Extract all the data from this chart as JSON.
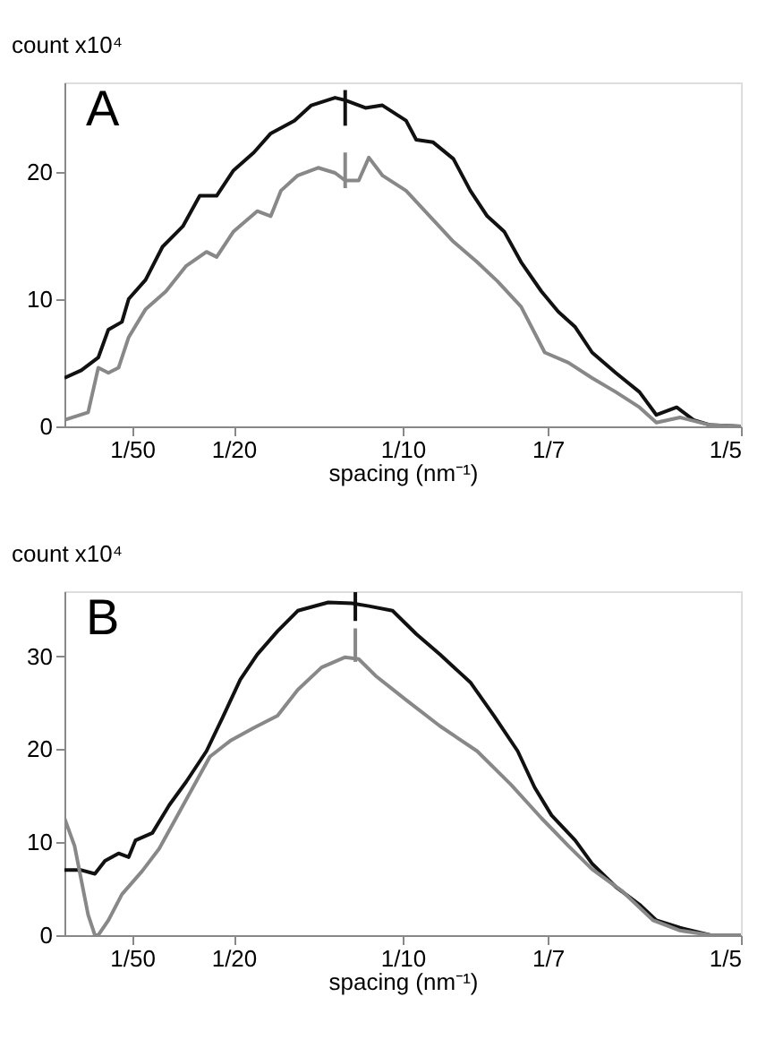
{
  "chart_data": [
    {
      "type": "line",
      "title": "A",
      "xlabel": "spacing (nm⁻¹)",
      "ylabel": "count x10⁴",
      "xlim": [
        0,
        0.2
      ],
      "ylim": [
        0,
        27
      ],
      "xticks": [
        {
          "value": 0.02,
          "label": "1/50"
        },
        {
          "value": 0.05,
          "label": "1/20"
        },
        {
          "value": 0.1,
          "label": "1/10"
        },
        {
          "value": 0.1429,
          "label": "1/7"
        },
        {
          "value": 0.2,
          "label": "1/5"
        }
      ],
      "yticks": [
        0,
        10,
        20
      ],
      "grid": false,
      "marker": "none",
      "line_style": "solid",
      "series": [
        {
          "color": "#111111",
          "x": [
            0,
            0.005,
            0.01,
            0.013,
            0.017,
            0.019,
            0.024,
            0.029,
            0.035,
            0.04,
            0.045,
            0.05,
            0.056,
            0.061,
            0.068,
            0.073,
            0.08,
            0.083,
            0.089,
            0.094,
            0.101,
            0.104,
            0.109,
            0.115,
            0.12,
            0.125,
            0.13,
            0.135,
            0.141,
            0.146,
            0.151,
            0.156,
            0.163,
            0.17,
            0.175,
            0.181,
            0.186,
            0.191,
            0.2
          ],
          "values": [
            3.8,
            4.4,
            5.4,
            7.6,
            8.2,
            10,
            11.5,
            14.1,
            15.7,
            18.1,
            18.1,
            20.1,
            21.5,
            23,
            24,
            25.2,
            25.8,
            25.6,
            25,
            25.2,
            24,
            22.5,
            22.3,
            21,
            18.5,
            16.5,
            15.3,
            12.9,
            10.6,
            9,
            7.8,
            5.8,
            4.2,
            2.7,
            0.9,
            1.5,
            0.5,
            0.1,
            0
          ]
        },
        {
          "color": "#888888",
          "x": [
            0,
            0.007,
            0.01,
            0.013,
            0.016,
            0.019,
            0.024,
            0.03,
            0.036,
            0.042,
            0.045,
            0.05,
            0.057,
            0.061,
            0.064,
            0.069,
            0.075,
            0.08,
            0.083,
            0.087,
            0.09,
            0.094,
            0.101,
            0.108,
            0.115,
            0.122,
            0.128,
            0.135,
            0.142,
            0.149,
            0.156,
            0.163,
            0.17,
            0.175,
            0.182,
            0.191,
            0.2
          ],
          "values": [
            0.5,
            1.1,
            4.6,
            4.2,
            4.6,
            7,
            9.2,
            10.6,
            12.6,
            13.7,
            13.3,
            15.3,
            16.9,
            16.5,
            18.5,
            19.7,
            20.3,
            19.9,
            19.3,
            19.3,
            21.1,
            19.7,
            18.5,
            16.5,
            14.5,
            12.9,
            11.4,
            9.4,
            5.8,
            5,
            3.8,
            2.7,
            1.5,
            0.3,
            0.7,
            0.1,
            0
          ]
        },
        {
          "color": "#111111",
          "x": [
            0.083,
            0.083
          ],
          "values": [
            23.6,
            26.4
          ]
        },
        {
          "color": "#888888",
          "x": [
            0.083,
            0.083
          ],
          "values": [
            18.7,
            21.5
          ]
        }
      ]
    },
    {
      "type": "line",
      "title": "B",
      "xlabel": "spacing (nm⁻¹)",
      "ylabel": "count x10⁴",
      "xlim": [
        0,
        0.2
      ],
      "ylim": [
        0,
        37
      ],
      "xticks": [
        {
          "value": 0.02,
          "label": "1/50"
        },
        {
          "value": 0.05,
          "label": "1/20"
        },
        {
          "value": 0.1,
          "label": "1/10"
        },
        {
          "value": 0.1429,
          "label": "1/7"
        },
        {
          "value": 0.2,
          "label": "1/5"
        }
      ],
      "yticks": [
        0,
        10,
        20,
        30
      ],
      "grid": false,
      "marker": "none",
      "line_style": "solid",
      "series": [
        {
          "color": "#111111",
          "x": [
            0,
            0.005,
            0.009,
            0.012,
            0.016,
            0.019,
            0.021,
            0.026,
            0.031,
            0.036,
            0.042,
            0.047,
            0.052,
            0.057,
            0.063,
            0.069,
            0.078,
            0.085,
            0.09,
            0.097,
            0.104,
            0.111,
            0.12,
            0.127,
            0.134,
            0.139,
            0.144,
            0.151,
            0.156,
            0.163,
            0.17,
            0.175,
            0.182,
            0.191,
            0.2
          ],
          "values": [
            7,
            7,
            6.6,
            8,
            8.8,
            8.4,
            10.2,
            11,
            14,
            16.5,
            19.8,
            23.6,
            27.5,
            30.2,
            32.7,
            34.9,
            35.8,
            35.7,
            35.4,
            34.9,
            32.4,
            30.2,
            27.2,
            23.6,
            19.8,
            15.9,
            12.9,
            10.2,
            7.7,
            5.2,
            3.3,
            1.6,
            0.8,
            0,
            0
          ]
        },
        {
          "color": "#888888",
          "x": [
            0,
            0.003,
            0.007,
            0.009,
            0.01,
            0.013,
            0.017,
            0.023,
            0.028,
            0.033,
            0.038,
            0.043,
            0.049,
            0.056,
            0.063,
            0.069,
            0.076,
            0.083,
            0.087,
            0.092,
            0.101,
            0.111,
            0.122,
            0.132,
            0.141,
            0.149,
            0.156,
            0.165,
            0.174,
            0.182,
            0.191,
            0.2
          ],
          "values": [
            12.6,
            9.6,
            2.2,
            0,
            0,
            1.6,
            4.4,
            6.9,
            9.3,
            12.6,
            15.9,
            19.2,
            20.9,
            22.3,
            23.6,
            26.4,
            28.8,
            29.9,
            29.7,
            27.9,
            25.3,
            22.5,
            19.8,
            16.2,
            12.6,
            9.6,
            7.1,
            4.7,
            1.6,
            0.5,
            0,
            0
          ]
        },
        {
          "color": "#111111",
          "x": [
            0.086,
            0.086
          ],
          "values": [
            33.8,
            36.9
          ]
        },
        {
          "color": "#888888",
          "x": [
            0.086,
            0.086
          ],
          "values": [
            29.4,
            33
          ]
        }
      ]
    }
  ]
}
